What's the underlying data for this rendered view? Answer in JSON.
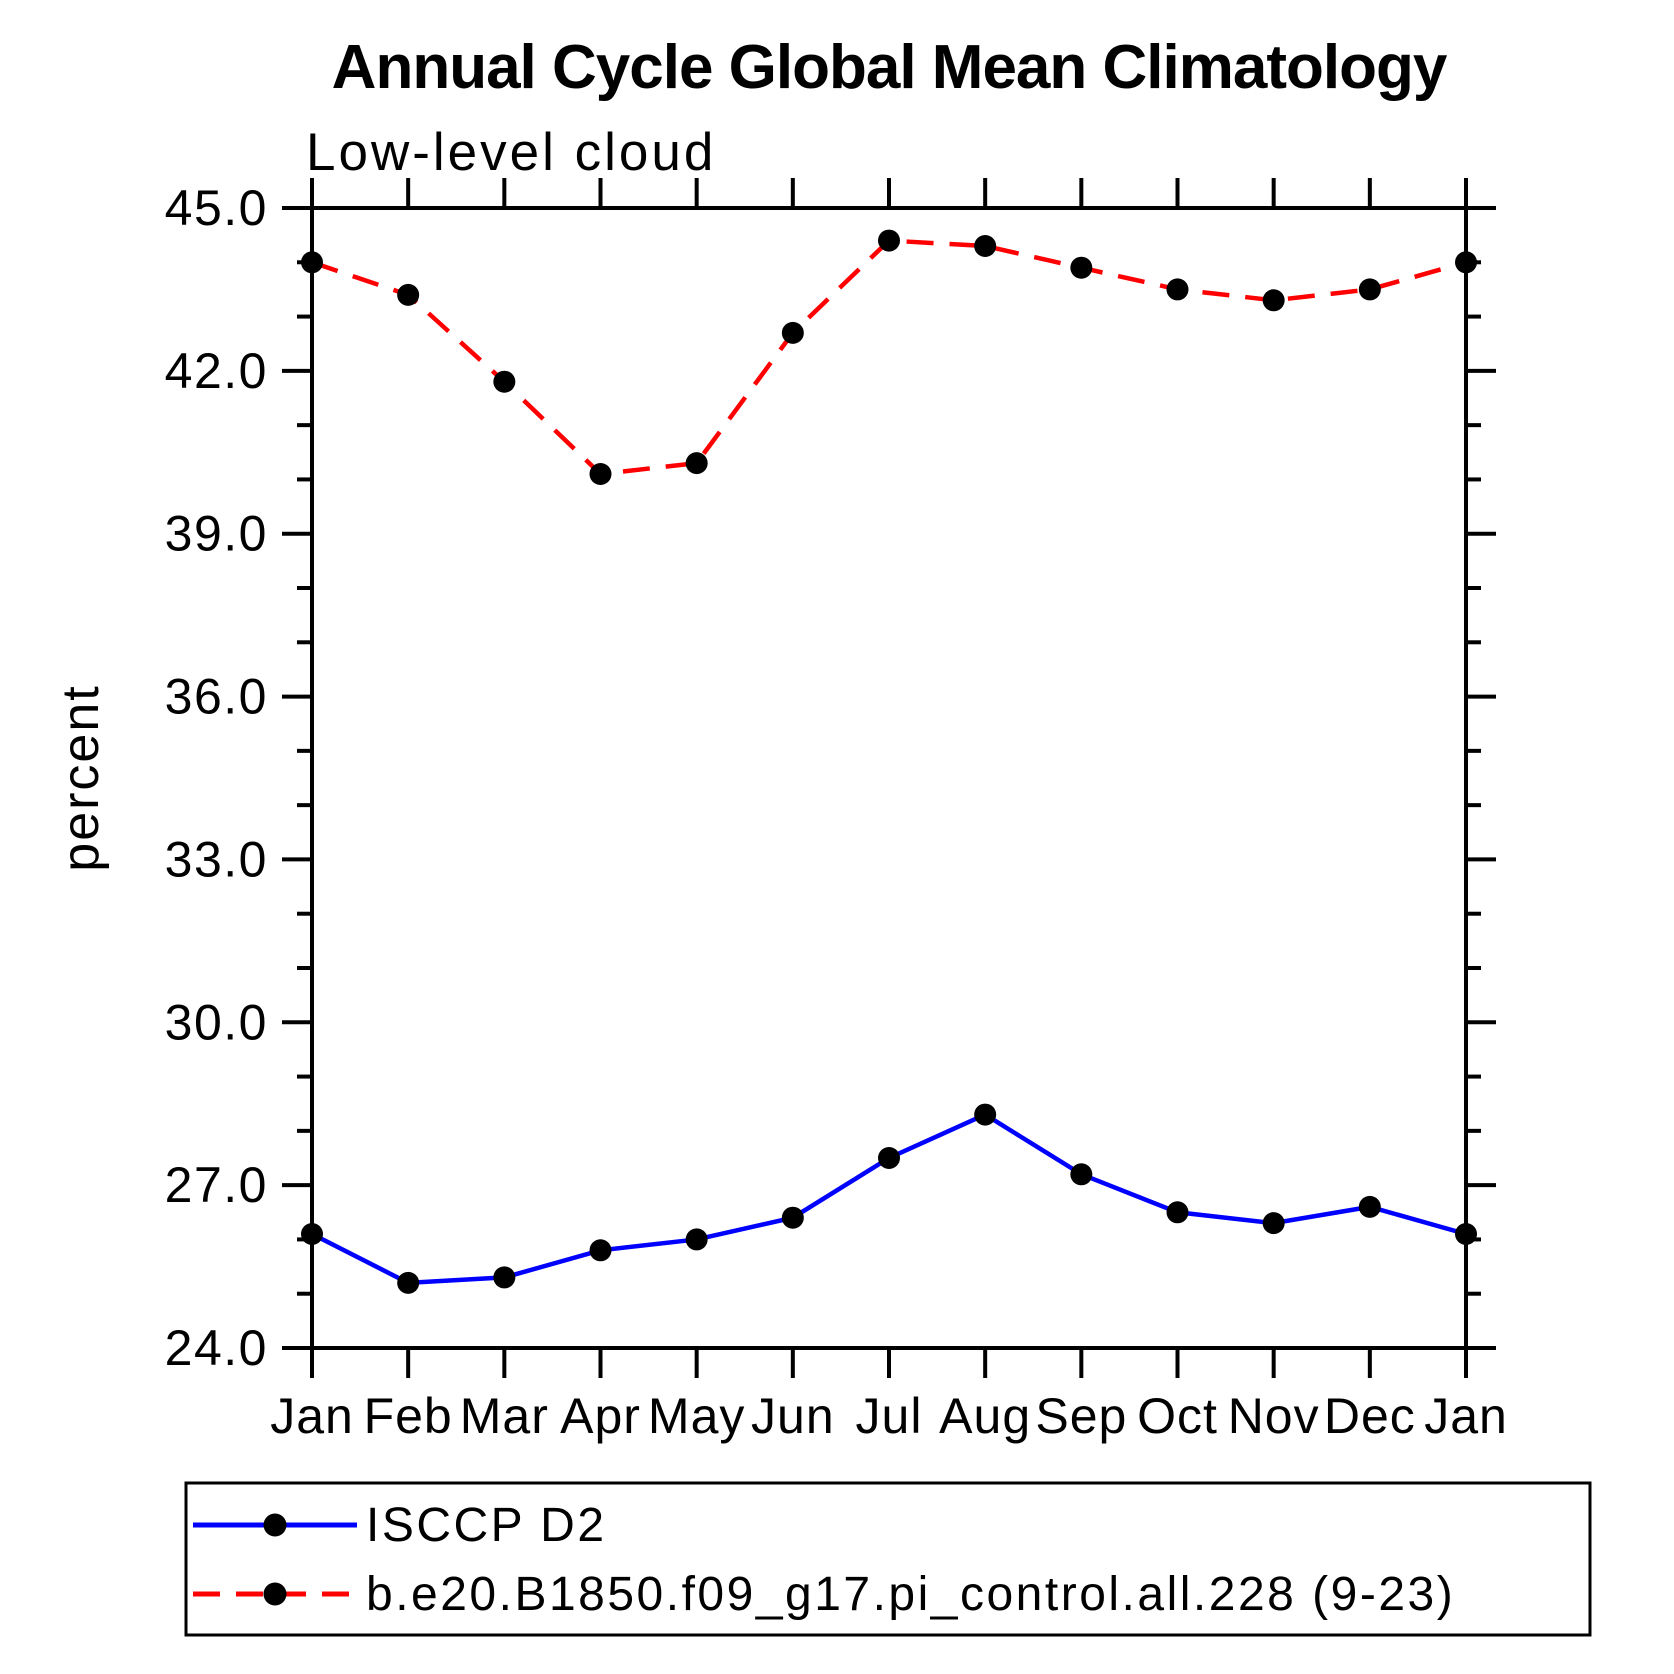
{
  "chart_data": {
    "type": "line",
    "title": "Annual Cycle Global Mean Climatology",
    "subtitle": "Low-level cloud",
    "categories": [
      "Jan",
      "Feb",
      "Mar",
      "Apr",
      "May",
      "Jun",
      "Jul",
      "Aug",
      "Sep",
      "Oct",
      "Nov",
      "Dec",
      "Jan"
    ],
    "series": [
      {
        "name": "ISCCP D2",
        "color": "#0000ff",
        "line_style": "solid",
        "marker": "filled-black-circle",
        "values": [
          26.1,
          25.2,
          25.3,
          25.8,
          26.0,
          26.4,
          27.5,
          28.3,
          27.2,
          26.5,
          26.3,
          26.6,
          26.1
        ]
      },
      {
        "name": "b.e20.B1850.f09_g17.pi_control.all.228 (9-23)",
        "color": "#ff0000",
        "line_style": "dashed",
        "marker": "filled-black-circle",
        "values": [
          44.0,
          43.4,
          41.8,
          40.1,
          40.3,
          42.7,
          44.4,
          44.3,
          43.9,
          43.5,
          43.3,
          43.5,
          44.0
        ]
      }
    ],
    "xlabel": "",
    "ylabel": "percent",
    "ylim": [
      24.0,
      45.0
    ],
    "ytick_major": [
      24.0,
      27.0,
      30.0,
      33.0,
      36.0,
      39.0,
      42.0,
      45.0
    ],
    "ytick_major_labels": [
      "24.0",
      "27.0",
      "30.0",
      "33.0",
      "36.0",
      "39.0",
      "42.0",
      "45.0"
    ],
    "ytick_minor_step": 1.0,
    "xtick_positions": "every month, ticks outward on top and bottom axes",
    "grid": false,
    "legend_position": "bottom-left box"
  }
}
